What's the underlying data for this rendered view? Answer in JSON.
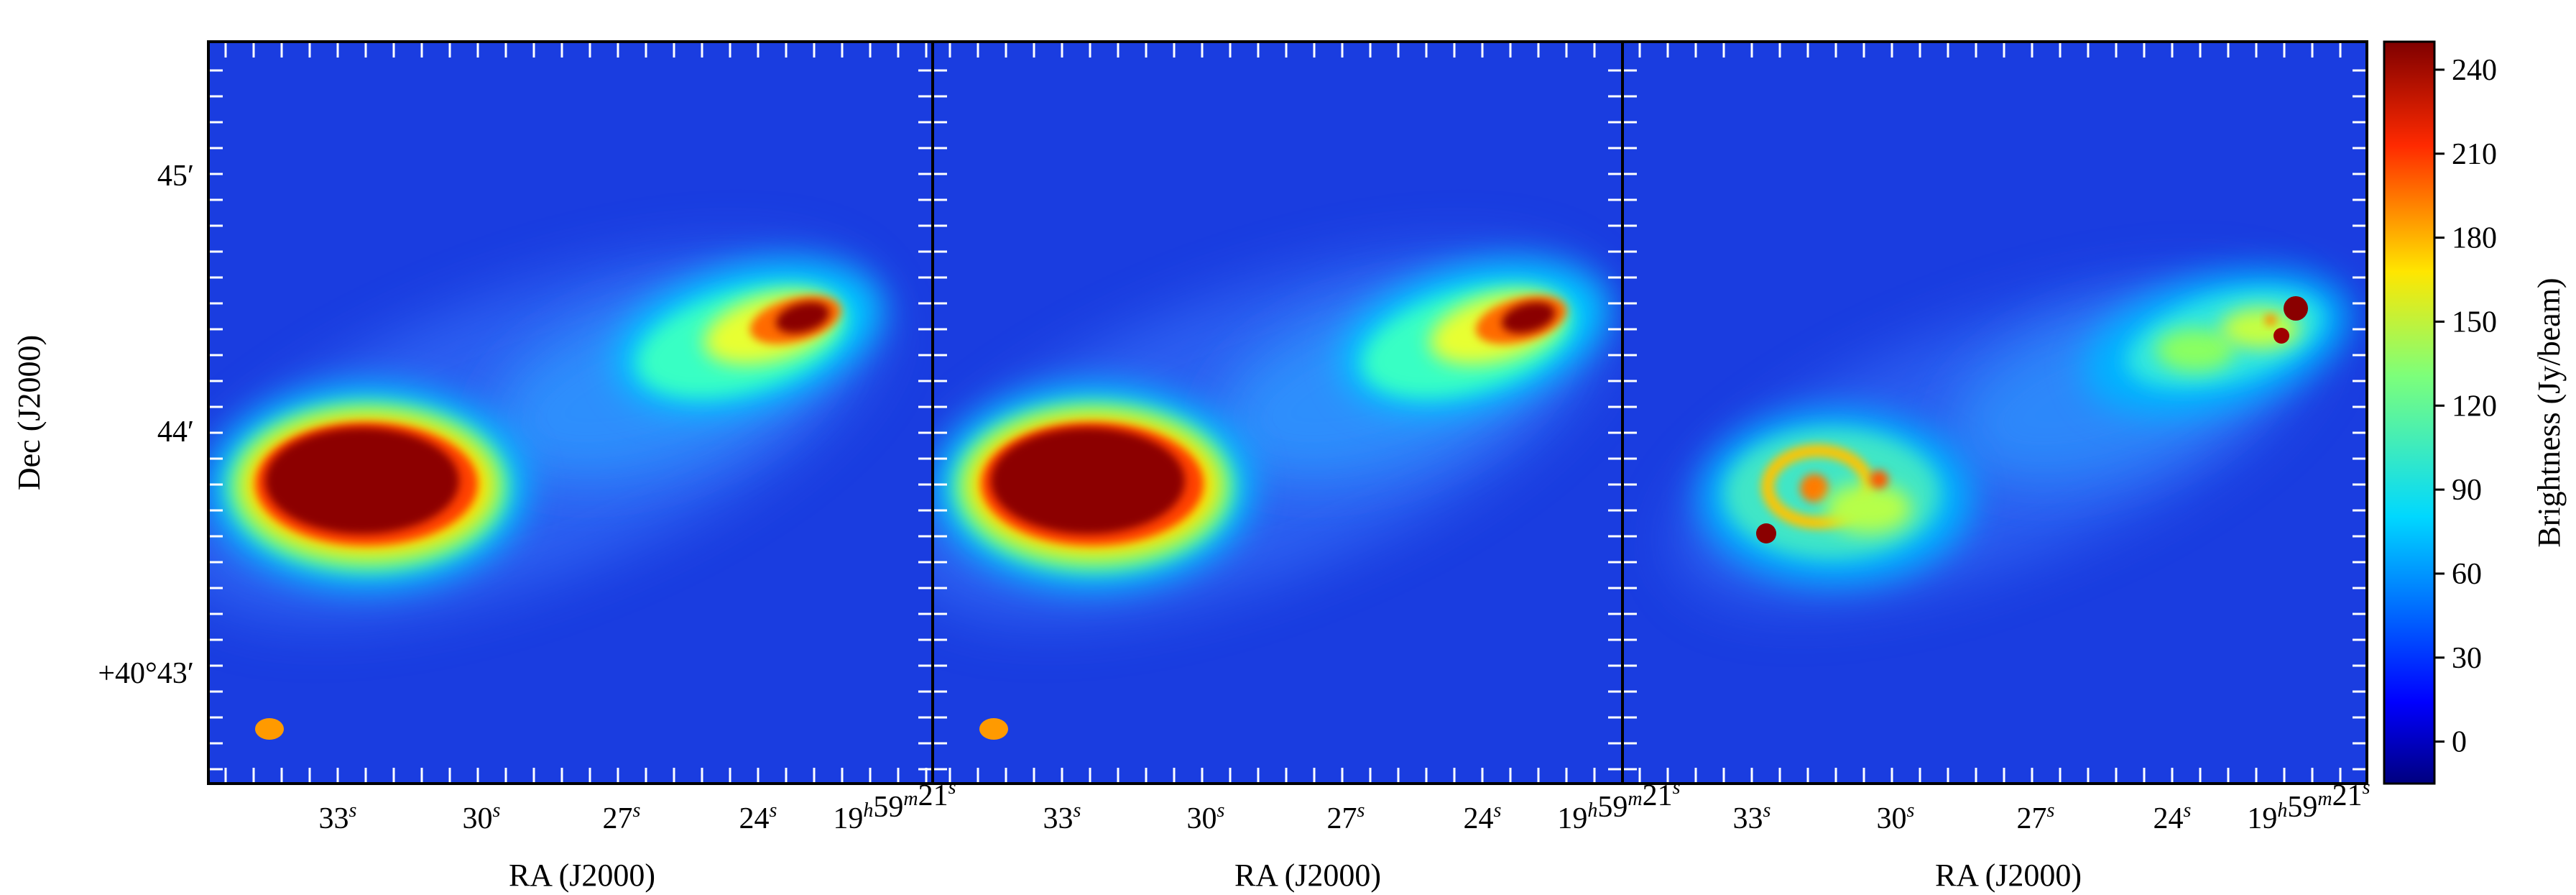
{
  "figure": {
    "panels": [
      {
        "id": "panel-1",
        "xlabel": "RA (J2000)",
        "ylabel": "Dec (J2000)",
        "beam_marker": true,
        "show_y_ticklabels": true
      },
      {
        "id": "panel-2",
        "xlabel": "RA (J2000)",
        "ylabel": "",
        "beam_marker": true,
        "show_y_ticklabels": false
      },
      {
        "id": "panel-3",
        "xlabel": "RA (J2000)",
        "ylabel": "",
        "beam_marker": false,
        "show_y_ticklabels": false
      }
    ],
    "ra_ticks": [
      {
        "main": "33",
        "unit": "s"
      },
      {
        "main": "30",
        "unit": "s"
      },
      {
        "main": "27",
        "unit": "s"
      },
      {
        "main": "24",
        "unit": "s"
      },
      {
        "main": "19",
        "unit": "h",
        "main2": "59",
        "unit2": "m",
        "main3": "21",
        "unit3": "s"
      }
    ],
    "dec_ticks": [
      {
        "label": "45′"
      },
      {
        "label": "44′"
      },
      {
        "label": "+40°43′"
      }
    ],
    "colorbar": {
      "label": "Brightness (Jy/beam)",
      "ticks": [
        "240",
        "210",
        "180",
        "150",
        "120",
        "90",
        "60",
        "30",
        "0"
      ],
      "range": [
        -15,
        250
      ],
      "colormap": "jet"
    },
    "colors": {
      "background_field": "#1a3de0",
      "beam": "#ff9a00",
      "hotspot": "#7a0000"
    }
  }
}
